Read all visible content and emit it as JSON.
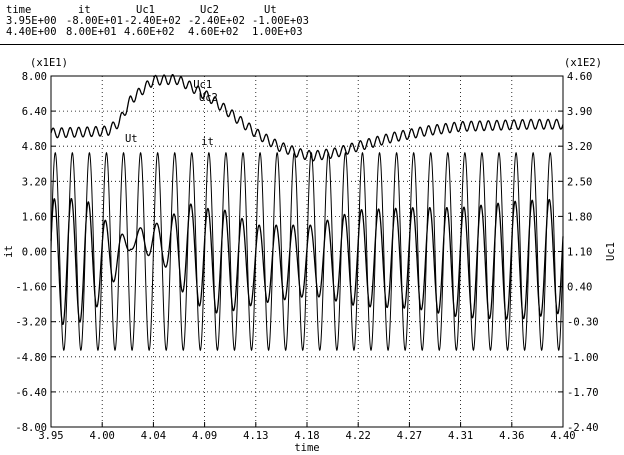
{
  "header": {
    "columns": [
      {
        "name": "time",
        "min": "3.95E+00",
        "max": "4.40E+00"
      },
      {
        "name": "it",
        "min": "-8.00E+01",
        "max": "8.00E+01"
      },
      {
        "name": "Uc1",
        "min": "-2.40E+02",
        "max": "4.60E+02"
      },
      {
        "name": "Uc2",
        "min": "-2.40E+02",
        "max": "4.60E+02"
      },
      {
        "name": "Ut",
        "min": "-1.00E+03",
        "max": "1.00E+03"
      }
    ]
  },
  "chart_data": {
    "type": "line",
    "xlabel": "time",
    "ylabel_left": "it",
    "ylabel_right": "Uc1",
    "left_scale": "(x1E1)",
    "right_scale": "(x1E2)",
    "xlim": [
      3.95,
      4.4
    ],
    "ylim_left": [
      -8.0,
      8.0
    ],
    "ylim_right": [
      -2.4,
      4.6
    ],
    "x_ticks": [
      "3.95",
      "4.00",
      "4.04",
      "4.09",
      "4.13",
      "4.18",
      "4.22",
      "4.27",
      "4.31",
      "4.36",
      "4.40"
    ],
    "y_ticks_left": [
      "8.00",
      "6.40",
      "4.80",
      "3.20",
      "1.60",
      "0.00",
      "-1.60",
      "-3.20",
      "-4.80",
      "-6.40",
      "-8.00"
    ],
    "y_ticks_right": [
      "4.60",
      "3.90",
      "3.20",
      "2.50",
      "1.80",
      "1.10",
      "0.40",
      "-0.30",
      "-1.00",
      "-1.70",
      "-2.40"
    ],
    "grid": "dotted",
    "series_labels": [
      {
        "text": "Uc1",
        "x": 4.075,
        "y": 7.45
      },
      {
        "text": "Uc2",
        "x": 4.08,
        "y": 6.85
      },
      {
        "text": "Ut",
        "x": 4.015,
        "y": 5.0
      },
      {
        "text": "it",
        "x": 4.082,
        "y": 4.85
      }
    ],
    "series": [
      {
        "name": "Ut",
        "kind": "sine",
        "axis": "left",
        "amplitude": 4.5,
        "offset": 0.0,
        "cycles": 30,
        "phase": 0.0
      },
      {
        "name": "it",
        "kind": "sine-modulated",
        "axis": "left",
        "cycles": 30,
        "phase": 0.35,
        "offset_points": {
          "x": [
            3.95,
            4.0,
            4.03,
            4.06,
            4.09,
            4.13,
            4.18,
            4.22,
            4.27,
            4.31,
            4.36,
            4.4
          ],
          "y": [
            -0.5,
            -0.3,
            0.6,
            0.2,
            -0.4,
            -0.6,
            -0.4,
            -0.3,
            -0.3,
            -0.5,
            -0.4,
            -0.2
          ]
        },
        "amplitude_points": {
          "x": [
            3.95,
            3.98,
            4.0,
            4.02,
            4.03,
            4.05,
            4.07,
            4.1,
            4.13,
            4.18,
            4.22,
            4.27,
            4.31,
            4.36,
            4.4
          ],
          "y": [
            2.9,
            2.8,
            1.6,
            0.2,
            0.6,
            1.0,
            2.2,
            2.4,
            1.8,
            1.6,
            2.2,
            2.3,
            2.5,
            2.7,
            2.6
          ]
        }
      },
      {
        "name": "Uc1",
        "kind": "envelope-ripple",
        "axis": "left",
        "ripple": 0.22,
        "ripple_cycles": 60,
        "points": {
          "x": [
            3.95,
            3.98,
            4.0,
            4.01,
            4.02,
            4.04,
            4.06,
            4.07,
            4.09,
            4.11,
            4.13,
            4.15,
            4.17,
            4.18,
            4.2,
            4.22,
            4.25,
            4.28,
            4.31,
            4.34,
            4.37,
            4.4
          ],
          "y": [
            5.4,
            5.45,
            5.5,
            5.9,
            6.9,
            7.8,
            7.85,
            7.6,
            7.0,
            6.2,
            5.4,
            4.8,
            4.45,
            4.35,
            4.5,
            4.8,
            5.2,
            5.5,
            5.7,
            5.75,
            5.8,
            5.8
          ]
        }
      }
    ]
  }
}
